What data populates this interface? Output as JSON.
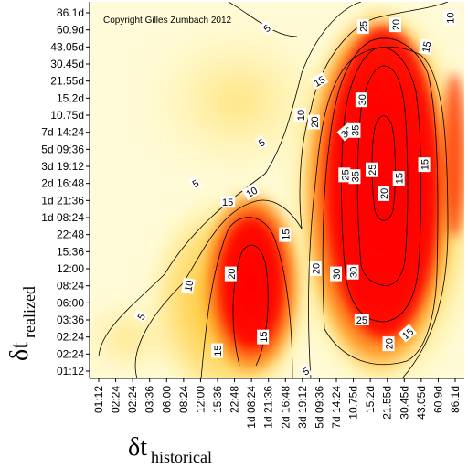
{
  "chart_data": {
    "type": "heatmap",
    "title": "",
    "copyright": "Copyright Gilles Zumbach 2012",
    "xlabel": {
      "symbol": "δt",
      "subscript": "historical"
    },
    "ylabel": {
      "symbol": "δt",
      "subscript": "realized"
    },
    "x_ticks": [
      "01:12",
      "02:24",
      "02:24",
      "03:36",
      "06:00",
      "08:24",
      "12:00",
      "15:36",
      "22:48",
      "1d 08:24",
      "1d 21:36",
      "2d 16:48",
      "3d 19:12",
      "5d 09:36",
      "7d 14:24",
      "10.75d",
      "15.2d",
      "21.55d",
      "30.45d",
      "43.05d",
      "60.9d",
      "86.1d"
    ],
    "y_ticks": [
      "01:12",
      "02:24",
      "02:24",
      "03:36",
      "06:00",
      "08:24",
      "12:00",
      "15:36",
      "22:48",
      "1d 08:24",
      "1d 21:36",
      "2d 16:48",
      "3d 19:12",
      "5d 09:36",
      "7d 14:24",
      "10.75d",
      "15.2d",
      "21.55d",
      "30.45d",
      "43.05d",
      "60.9d",
      "86.1d"
    ],
    "contour_levels": [
      5,
      10,
      15,
      20,
      25,
      30,
      35
    ],
    "color_scale": {
      "low": "#ffffe0",
      "mid": "#ffd030",
      "high": "#ff0000"
    },
    "contour_labels": [
      {
        "text": "5",
        "x": 9.9,
        "y": 20.1,
        "rotate": -40
      },
      {
        "text": "10",
        "x": 20.7,
        "y": 20.7,
        "rotate": -90
      },
      {
        "text": "5",
        "x": 2.5,
        "y": 3.2,
        "rotate": -60
      },
      {
        "text": "5",
        "x": 5.7,
        "y": 11.0,
        "rotate": -30
      },
      {
        "text": "5",
        "x": 9.6,
        "y": 13.4,
        "rotate": -30
      },
      {
        "text": "5",
        "x": 12.2,
        "y": 0.0,
        "rotate": -30
      },
      {
        "text": "10",
        "x": 5.3,
        "y": 5.0,
        "rotate": -80
      },
      {
        "text": "10",
        "x": 9.0,
        "y": 10.5,
        "rotate": -30
      },
      {
        "text": "10",
        "x": 11.9,
        "y": 15.0,
        "rotate": -90
      },
      {
        "text": "15",
        "x": 7.0,
        "y": 1.2,
        "rotate": -90
      },
      {
        "text": "15",
        "x": 7.6,
        "y": 9.9,
        "rotate": 0
      },
      {
        "text": "15",
        "x": 9.7,
        "y": 2.0,
        "rotate": -90
      },
      {
        "text": "15",
        "x": 11.0,
        "y": 8.0,
        "rotate": -90
      },
      {
        "text": "15",
        "x": 13.0,
        "y": 17.0,
        "rotate": -30
      },
      {
        "text": "15",
        "x": 18.2,
        "y": 2.2,
        "rotate": -40
      },
      {
        "text": "15",
        "x": 17.7,
        "y": 11.3,
        "rotate": -90
      },
      {
        "text": "15",
        "x": 19.3,
        "y": 19.0,
        "rotate": -80
      },
      {
        "text": "20",
        "x": 7.8,
        "y": 5.7,
        "rotate": -90
      },
      {
        "text": "20",
        "x": 12.8,
        "y": 6.0,
        "rotate": -90
      },
      {
        "text": "20",
        "x": 12.7,
        "y": 14.6,
        "rotate": -90
      },
      {
        "text": "20",
        "x": 17.1,
        "y": 1.6,
        "rotate": -90
      },
      {
        "text": "20",
        "x": 16.8,
        "y": 10.4,
        "rotate": -90
      },
      {
        "text": "20",
        "x": 17.5,
        "y": 20.3,
        "rotate": -90
      },
      {
        "text": "25",
        "x": 15.5,
        "y": 3.0,
        "rotate": 0
      },
      {
        "text": "25",
        "x": 14.5,
        "y": 11.5,
        "rotate": -90
      },
      {
        "text": "25",
        "x": 16.1,
        "y": 11.8,
        "rotate": -90
      },
      {
        "text": "25",
        "x": 15.6,
        "y": 20.2,
        "rotate": -90
      },
      {
        "text": "30",
        "x": 14.0,
        "y": 5.7,
        "rotate": -90
      },
      {
        "text": "30",
        "x": 15.0,
        "y": 5.8,
        "rotate": -90
      },
      {
        "text": "30",
        "x": 14.6,
        "y": 14.0,
        "rotate": -40
      },
      {
        "text": "30",
        "x": 15.5,
        "y": 15.9,
        "rotate": -90
      },
      {
        "text": "35",
        "x": 15.1,
        "y": 11.4,
        "rotate": -90
      },
      {
        "text": "35",
        "x": 15.1,
        "y": 14.1,
        "rotate": -90
      },
      {
        "text": "15",
        "x": 19.2,
        "y": 12.1,
        "rotate": -90
      }
    ]
  }
}
